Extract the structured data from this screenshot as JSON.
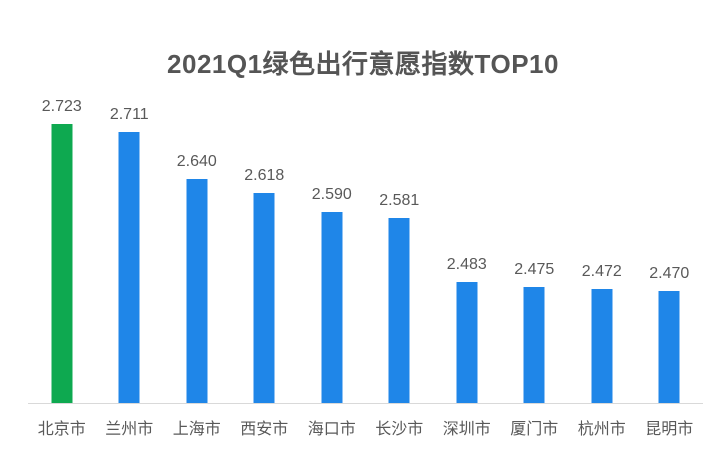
{
  "chart_data": {
    "type": "bar",
    "title": "2021Q1绿色出行意愿指数TOP10",
    "categories": [
      "北京市",
      "兰州市",
      "上海市",
      "西安市",
      "海口市",
      "长沙市",
      "深圳市",
      "厦门市",
      "杭州市",
      "昆明市"
    ],
    "values": [
      2.723,
      2.711,
      2.64,
      2.618,
      2.59,
      2.581,
      2.483,
      2.475,
      2.472,
      2.47
    ],
    "value_labels": [
      "2.723",
      "2.711",
      "2.640",
      "2.618",
      "2.590",
      "2.581",
      "2.483",
      "2.475",
      "2.472",
      "2.470"
    ],
    "highlighted_index": 0,
    "xlabel": "",
    "ylabel": "",
    "ylim": [
      2.3,
      2.75
    ],
    "grid": false,
    "legend_position": "none",
    "data_labels": true
  },
  "colors": {
    "bar": "#1F86E8",
    "bar_highlight": "#0EA950",
    "title_text": "#555555",
    "label_text": "#595959",
    "axis_line": "#D9D9D9",
    "background": "#FFFFFF"
  }
}
